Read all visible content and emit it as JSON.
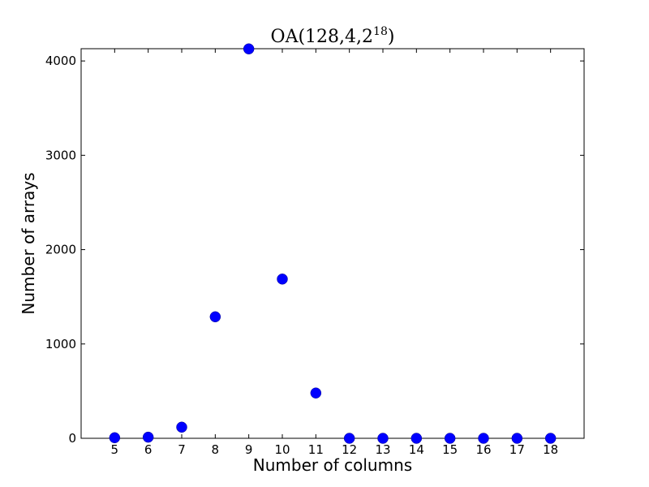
{
  "chart_data": {
    "type": "scatter",
    "title": {
      "main": "OA(128,4,2",
      "exponent": "18",
      "close": ")"
    },
    "xlabel": "Number of columns",
    "ylabel": "Number of arrays",
    "xlim": [
      4,
      19
    ],
    "ylim": [
      0,
      4130
    ],
    "xticks": [
      5,
      6,
      7,
      8,
      9,
      10,
      11,
      12,
      13,
      14,
      15,
      16,
      17,
      18
    ],
    "yticks": [
      0,
      1000,
      2000,
      3000,
      4000
    ],
    "grid": false,
    "series": [
      {
        "color": "#0000ff",
        "marker": "circle",
        "x": [
          5,
          6,
          7,
          8,
          9,
          10,
          11,
          12,
          13,
          14,
          15,
          16,
          17,
          18
        ],
        "y": [
          6,
          12,
          118,
          1288,
          4128,
          1688,
          480,
          0,
          0,
          0,
          0,
          0,
          0,
          0
        ]
      }
    ]
  }
}
